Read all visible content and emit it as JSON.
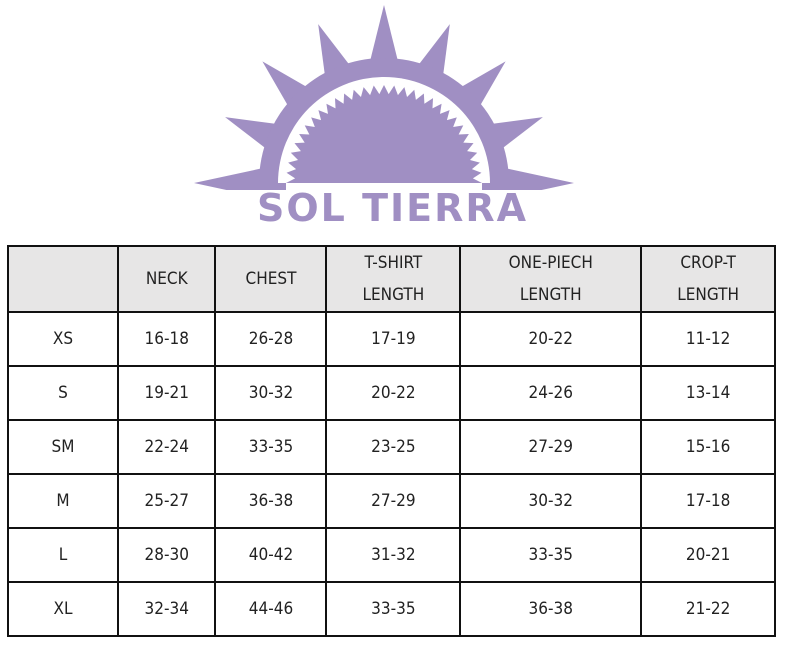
{
  "logo": {
    "brand": "SOL TIERRA",
    "color": "#a08fc3"
  },
  "table": {
    "headers": [
      "",
      "NECK",
      "CHEST",
      "T-SHIRT\nLENGTH",
      "ONE-PIECH\nLENGTH",
      "CROP-T\nLENGTH"
    ],
    "rows": [
      [
        "XS",
        "16-18",
        "26-28",
        "17-19",
        "20-22",
        "11-12"
      ],
      [
        "S",
        "19-21",
        "30-32",
        "20-22",
        "24-26",
        "13-14"
      ],
      [
        "SM",
        "22-24",
        "33-35",
        "23-25",
        "27-29",
        "15-16"
      ],
      [
        "M",
        "25-27",
        "36-38",
        "27-29",
        "30-32",
        "17-18"
      ],
      [
        "L",
        "28-30",
        "40-42",
        "31-32",
        "33-35",
        "20-21"
      ],
      [
        "XL",
        "32-34",
        "44-46",
        "33-35",
        "36-38",
        "21-22"
      ]
    ],
    "header_bg": "#e7e6e6"
  }
}
